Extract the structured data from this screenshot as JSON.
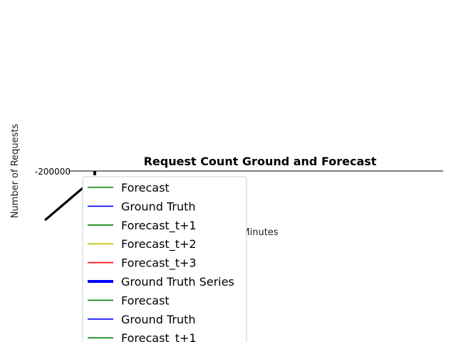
{
  "chart_data": {
    "type": "line",
    "title": "Request Count Ground and Forecast",
    "xlabel": "Minutes",
    "ylabel": "Number of Requests",
    "y_ticks": [
      "-200000"
    ],
    "grid": false,
    "legend_placement": "bottom-left, overflowing the figure",
    "legend": [
      {
        "name": "Forecast",
        "color": "#008000",
        "width": "thin"
      },
      {
        "name": "Ground Truth",
        "color": "#0000ff",
        "width": "thin"
      },
      {
        "name": "Forecast_t+1",
        "color": "#008000",
        "width": "thin"
      },
      {
        "name": "Forecast_t+2",
        "color": "#bfbf00",
        "width": "thin"
      },
      {
        "name": "Forecast_t+3",
        "color": "#ff0000",
        "width": "thin"
      },
      {
        "name": "Ground Truth Series",
        "color": "#0000ff",
        "width": "thick"
      },
      {
        "name": "Forecast",
        "color": "#008000",
        "width": "thin"
      },
      {
        "name": "Ground Truth",
        "color": "#0000ff",
        "width": "thin"
      },
      {
        "name": "Forecast_t+1",
        "color": "#008000",
        "width": "thin"
      }
    ],
    "colors": {
      "axis": "#000000",
      "marker": "#808080",
      "legend_border": "#cccccc"
    }
  }
}
